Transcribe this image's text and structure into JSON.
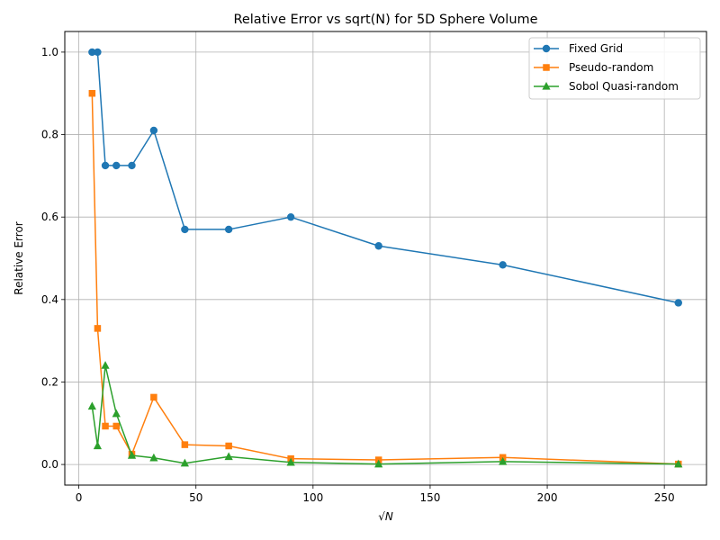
{
  "chart_data": {
    "type": "line",
    "title": "Relative Error vs sqrt(N) for 5D Sphere Volume",
    "xlabel": "√N",
    "ylabel": "Relative Error",
    "xlim": [
      -6,
      268
    ],
    "ylim": [
      -0.05,
      1.05
    ],
    "xticks": [
      0,
      50,
      100,
      150,
      200,
      250
    ],
    "yticks": [
      0.0,
      0.2,
      0.4,
      0.6,
      0.8,
      1.0
    ],
    "xtick_labels": [
      "0",
      "50",
      "100",
      "150",
      "200",
      "250"
    ],
    "ytick_labels": [
      "0.0",
      "0.2",
      "0.4",
      "0.6",
      "0.8",
      "1.0"
    ],
    "grid": true,
    "legend_position": "top-right",
    "series": [
      {
        "name": "Fixed Grid",
        "color": "#1f77b4",
        "marker": "circle",
        "x": [
          5.66,
          8,
          11.31,
          16,
          22.63,
          32,
          45.25,
          64,
          90.51,
          128,
          181.02,
          256
        ],
        "y": [
          1.0,
          1.0,
          0.725,
          0.725,
          0.725,
          0.81,
          0.57,
          0.57,
          0.6,
          0.53,
          0.484,
          0.392
        ]
      },
      {
        "name": "Pseudo-random",
        "color": "#ff7f0e",
        "marker": "square",
        "x": [
          5.66,
          8,
          11.31,
          16,
          22.63,
          32,
          45.25,
          64,
          90.51,
          128,
          181.02,
          256
        ],
        "y": [
          0.9,
          0.33,
          0.093,
          0.093,
          0.025,
          0.163,
          0.048,
          0.045,
          0.014,
          0.011,
          0.017,
          0.001
        ]
      },
      {
        "name": "Sobol Quasi-random",
        "color": "#2ca02c",
        "marker": "triangle",
        "x": [
          5.66,
          8,
          11.31,
          16,
          22.63,
          32,
          45.25,
          64,
          90.51,
          128,
          181.02,
          256
        ],
        "y": [
          0.141,
          0.045,
          0.24,
          0.123,
          0.022,
          0.016,
          0.003,
          0.019,
          0.005,
          0.001,
          0.007,
          0.001
        ]
      }
    ]
  }
}
